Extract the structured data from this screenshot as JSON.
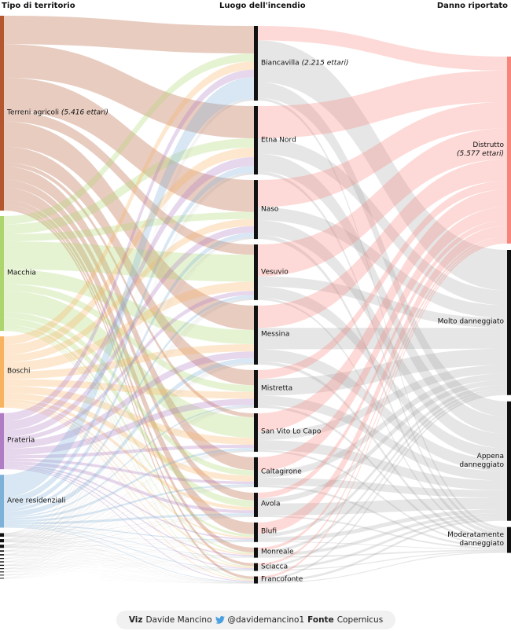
{
  "headers": {
    "left": "Tipo di territorio",
    "middle": "Luogo dell'incendio",
    "right": "Danno riportato"
  },
  "chart_data": {
    "type": "sankey",
    "columns": [
      {
        "name": "Tipo di territorio",
        "nodes": [
          {
            "label": "Terreni agricoli",
            "note": "(5.416 ettari)",
            "value": 5416,
            "color": "#b4572f"
          },
          {
            "label": "Macchia",
            "value": 3190,
            "color": "#acd66d"
          },
          {
            "label": "Boschi",
            "value": 1980,
            "color": "#f7b35f"
          },
          {
            "label": "Prateria",
            "value": 1560,
            "color": "#b07cc4"
          },
          {
            "label": "Aree residenziali",
            "value": 1470,
            "color": "#7eb1d8"
          },
          {
            "label": "",
            "value": 100,
            "color": "#111111"
          },
          {
            "label": "",
            "value": 90,
            "color": "#111111"
          },
          {
            "label": "",
            "value": 90,
            "color": "#111111"
          },
          {
            "label": "",
            "value": 40,
            "color": "#111111"
          },
          {
            "label": "",
            "value": 40,
            "color": "#111111"
          },
          {
            "label": "",
            "value": 30,
            "color": "#111111"
          },
          {
            "label": "",
            "value": 30,
            "color": "#111111"
          },
          {
            "label": "",
            "value": 30,
            "color": "#111111"
          },
          {
            "label": "",
            "value": 25,
            "color": "#111111"
          },
          {
            "label": "",
            "value": 25,
            "color": "#111111"
          },
          {
            "label": "",
            "value": 20,
            "color": "#111111"
          },
          {
            "label": "",
            "value": 20,
            "color": "#111111"
          }
        ]
      },
      {
        "name": "Luogo dell'incendio",
        "nodes": [
          {
            "label": "Biancavilla",
            "note": "(2.215 ettari)",
            "value": 2215,
            "color": "#111111"
          },
          {
            "label": "Etna Nord",
            "value": 2030,
            "color": "#111111"
          },
          {
            "label": "Naso",
            "value": 1750,
            "color": "#111111"
          },
          {
            "label": "Vesuvio",
            "value": 1650,
            "color": "#111111"
          },
          {
            "label": "Messina",
            "value": 1750,
            "color": "#111111"
          },
          {
            "label": "Mistretta",
            "value": 1120,
            "color": "#111111"
          },
          {
            "label": "San Vito Lo Capo",
            "value": 1140,
            "color": "#111111"
          },
          {
            "label": "Caltagirone",
            "value": 890,
            "color": "#111111"
          },
          {
            "label": "Avola",
            "value": 720,
            "color": "#111111"
          },
          {
            "label": "Blufi",
            "value": 580,
            "color": "#111111"
          },
          {
            "label": "Monreale",
            "value": 300,
            "color": "#111111"
          },
          {
            "label": "Sciacca",
            "value": 230,
            "color": "#111111"
          },
          {
            "label": "Francofonte",
            "value": 210,
            "color": "#111111"
          }
        ]
      },
      {
        "name": "Danno riportato",
        "nodes": [
          {
            "label": "Distrutto",
            "note": "(5.577 ettari)",
            "value": 5577,
            "color": "#f7857a"
          },
          {
            "label": "Molto danneggiato",
            "value": 4330,
            "color": "#111111"
          },
          {
            "label": "Appena danneggiato",
            "value": 3560,
            "color": "#111111"
          },
          {
            "label": "Moderatamente danneggiato",
            "value": 770,
            "color": "#111111"
          }
        ]
      }
    ],
    "flow_weights_left_to_middle": [
      [
        3,
        3,
        4,
        1,
        3,
        2,
        0.5,
        2,
        1,
        2,
        1,
        0.5,
        0.5
      ],
      [
        1,
        1,
        1,
        3,
        2,
        1,
        3,
        1,
        1,
        0.5,
        0.3,
        0.2,
        0.2
      ],
      [
        1,
        1,
        1,
        1,
        1,
        1,
        1,
        1,
        0.5,
        0.3,
        0.3,
        0.2,
        0.2
      ],
      [
        1,
        1,
        1,
        0.5,
        1,
        1,
        0.5,
        0.5,
        0.5,
        0.3,
        0.3,
        0.2,
        0.2
      ],
      [
        4,
        1,
        1,
        0.5,
        1,
        0.3,
        0.5,
        0.5,
        0.5,
        0.3,
        0.2,
        0.2,
        0.2
      ]
    ],
    "flow_weights_middle_to_right": [
      [
        1,
        3,
        1,
        0.2
      ],
      [
        2,
        1,
        1,
        0.2
      ],
      [
        2,
        1,
        1,
        0.3
      ],
      [
        3,
        1,
        1,
        0.2
      ],
      [
        2,
        2,
        1,
        0.3
      ],
      [
        1,
        2,
        1,
        0.3
      ],
      [
        2,
        1,
        1,
        0.2
      ],
      [
        2,
        1,
        1,
        0.3
      ],
      [
        1,
        1,
        2,
        0.3
      ],
      [
        3,
        1,
        1,
        0.2
      ],
      [
        1,
        1,
        1,
        0.5
      ],
      [
        1,
        1,
        1,
        0.5
      ],
      [
        1,
        1,
        1,
        0.5
      ]
    ],
    "link_colors": {
      "destroyed": "#f7857a",
      "other": "#9a9a9a"
    }
  },
  "footer": {
    "viz_label": "Viz",
    "author": "Davide Mancino",
    "twitter_handle": "@davidemancino1",
    "source_label": "Fonte",
    "source": "Copernicus"
  }
}
